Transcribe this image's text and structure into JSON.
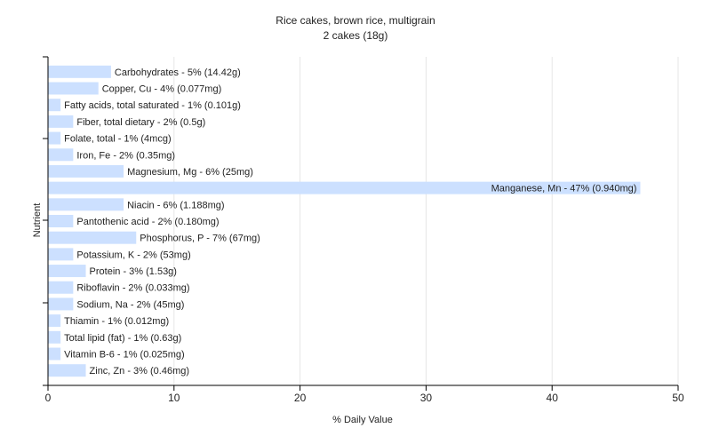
{
  "chart_data": {
    "type": "bar",
    "orientation": "horizontal",
    "title": "Rice cakes, brown rice, multigrain",
    "subtitle": "2 cakes (18g)",
    "xlabel": "% Daily Value",
    "ylabel": "Nutrient",
    "xlim": [
      0,
      50
    ],
    "xticks": [
      0,
      10,
      20,
      30,
      40,
      50
    ],
    "grid": true,
    "bar_color": "#cce0ff",
    "categories": [
      "Carbohydrates",
      "Copper, Cu",
      "Fatty acids, total saturated",
      "Fiber, total dietary",
      "Folate, total",
      "Iron, Fe",
      "Magnesium, Mg",
      "Manganese, Mn",
      "Niacin",
      "Pantothenic acid",
      "Phosphorus, P",
      "Potassium, K",
      "Protein",
      "Riboflavin",
      "Sodium, Na",
      "Thiamin",
      "Total lipid (fat)",
      "Vitamin B-6",
      "Zinc, Zn"
    ],
    "values": [
      5,
      4,
      1,
      2,
      1,
      2,
      6,
      47,
      6,
      2,
      7,
      2,
      3,
      2,
      2,
      1,
      1,
      1,
      3
    ],
    "labels": [
      "Carbohydrates - 5% (14.42g)",
      "Copper, Cu - 4% (0.077mg)",
      "Fatty acids, total saturated - 1% (0.101g)",
      "Fiber, total dietary - 2% (0.5g)",
      "Folate, total - 1% (4mcg)",
      "Iron, Fe - 2% (0.35mg)",
      "Magnesium, Mg - 6% (25mg)",
      "Manganese, Mn - 47% (0.940mg)",
      "Niacin - 6% (1.188mg)",
      "Pantothenic acid - 2% (0.180mg)",
      "Phosphorus, P - 7% (67mg)",
      "Potassium, K - 2% (53mg)",
      "Protein - 3% (1.53g)",
      "Riboflavin - 2% (0.033mg)",
      "Sodium, Na - 2% (45mg)",
      "Thiamin - 1% (0.012mg)",
      "Total lipid (fat) - 1% (0.63g)",
      "Vitamin B-6 - 1% (0.025mg)",
      "Zinc, Zn - 3% (0.46mg)"
    ]
  }
}
